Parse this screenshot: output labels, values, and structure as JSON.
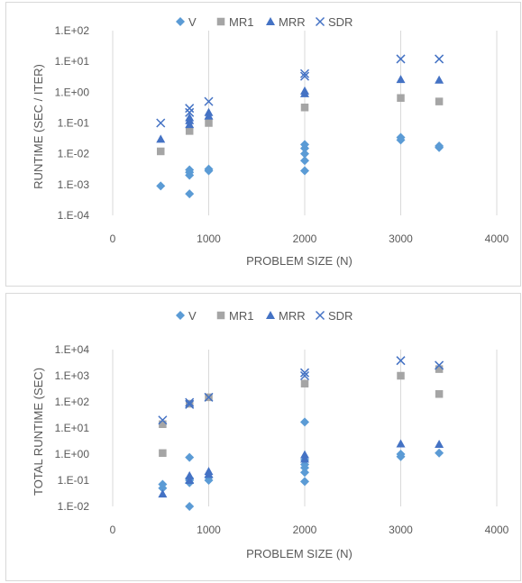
{
  "chart_data": [
    {
      "type": "scatter",
      "title": "",
      "xlabel": "PROBLEM SIZE (N)",
      "ylabel": "RUNTIME (SEC / ITER)",
      "xlim": [
        0,
        4000
      ],
      "xticks": [
        "0",
        "1000",
        "2000",
        "3000",
        "4000"
      ],
      "yscale": "log",
      "ylim": [
        0.0001,
        100
      ],
      "yticks": [
        "1.E-04",
        "1.E-03",
        "1.E-02",
        "1.E-01",
        "1.E+00",
        "1.E+01",
        "1.E+02"
      ],
      "grid": "vertical",
      "legend": "top",
      "series": [
        {
          "name": "V",
          "marker": "diamond",
          "color": "#5B9BD5",
          "points": [
            [
              500,
              0.0009
            ],
            [
              800,
              0.0005
            ],
            [
              800,
              0.002
            ],
            [
              800,
              0.0025
            ],
            [
              800,
              0.003
            ],
            [
              1000,
              0.0028
            ],
            [
              1000,
              0.0032
            ],
            [
              2000,
              0.0028
            ],
            [
              2000,
              0.006
            ],
            [
              2000,
              0.01
            ],
            [
              2000,
              0.015
            ],
            [
              2000,
              0.02
            ],
            [
              3000,
              0.028
            ],
            [
              3000,
              0.034
            ],
            [
              3400,
              0.016
            ],
            [
              3400,
              0.018
            ]
          ]
        },
        {
          "name": "MR1",
          "marker": "square",
          "color": "#A5A5A5",
          "points": [
            [
              500,
              0.012
            ],
            [
              800,
              0.055
            ],
            [
              1000,
              0.1
            ],
            [
              2000,
              0.32
            ],
            [
              3000,
              0.65
            ],
            [
              3400,
              0.5
            ]
          ]
        },
        {
          "name": "MRR",
          "marker": "triangle",
          "color": "#4472C4",
          "points": [
            [
              500,
              0.03
            ],
            [
              800,
              0.09
            ],
            [
              800,
              0.12
            ],
            [
              800,
              0.15
            ],
            [
              1000,
              0.17
            ],
            [
              1000,
              0.22
            ],
            [
              2000,
              0.9
            ],
            [
              2000,
              1.1
            ],
            [
              3000,
              2.6
            ],
            [
              3400,
              2.5
            ]
          ]
        },
        {
          "name": "SDR",
          "marker": "x",
          "color": "#4472C4",
          "points": [
            [
              500,
              0.1
            ],
            [
              800,
              0.22
            ],
            [
              800,
              0.3
            ],
            [
              1000,
              0.5
            ],
            [
              2000,
              3.3
            ],
            [
              2000,
              4.0
            ],
            [
              3000,
              12
            ],
            [
              3400,
              12
            ]
          ]
        }
      ]
    },
    {
      "type": "scatter",
      "title": "",
      "xlabel": "PROBLEM SIZE (N)",
      "ylabel": "TOTAL RUNTIME (SEC)",
      "xlim": [
        0,
        4000
      ],
      "xticks": [
        "0",
        "1000",
        "2000",
        "3000",
        "4000"
      ],
      "yscale": "log",
      "ylim": [
        0.01,
        10000
      ],
      "yticks": [
        "1.E-02",
        "1.E-01",
        "1.E+00",
        "1.E+01",
        "1.E+02",
        "1.E+03",
        "1.E+04"
      ],
      "grid": "vertical",
      "legend": "top",
      "series": [
        {
          "name": "V",
          "marker": "diamond",
          "color": "#5B9BD5",
          "points": [
            [
              520,
              0.05
            ],
            [
              520,
              0.07
            ],
            [
              800,
              0.01
            ],
            [
              800,
              0.08
            ],
            [
              800,
              0.1
            ],
            [
              800,
              0.12
            ],
            [
              800,
              0.75
            ],
            [
              1000,
              0.1
            ],
            [
              1000,
              0.13
            ],
            [
              2000,
              0.09
            ],
            [
              2000,
              0.2
            ],
            [
              2000,
              0.3
            ],
            [
              2000,
              0.4
            ],
            [
              2000,
              0.6
            ],
            [
              2000,
              17
            ],
            [
              3000,
              0.8
            ],
            [
              3000,
              1.0
            ],
            [
              3400,
              1.1
            ]
          ]
        },
        {
          "name": "MR1",
          "marker": "square",
          "color": "#A5A5A5",
          "points": [
            [
              520,
              1.1
            ],
            [
              520,
              14
            ],
            [
              800,
              85
            ],
            [
              1000,
              150
            ],
            [
              2000,
              500
            ],
            [
              3000,
              1000
            ],
            [
              3400,
              200
            ],
            [
              3400,
              1800
            ]
          ]
        },
        {
          "name": "MRR",
          "marker": "triangle",
          "color": "#4472C4",
          "points": [
            [
              520,
              0.03
            ],
            [
              800,
              0.1
            ],
            [
              800,
              0.15
            ],
            [
              1000,
              0.17
            ],
            [
              1000,
              0.22
            ],
            [
              2000,
              0.65
            ],
            [
              2000,
              0.95
            ],
            [
              3000,
              2.5
            ],
            [
              3400,
              2.4
            ]
          ]
        },
        {
          "name": "SDR",
          "marker": "x",
          "color": "#4472C4",
          "points": [
            [
              520,
              20
            ],
            [
              800,
              80
            ],
            [
              800,
              95
            ],
            [
              1000,
              150
            ],
            [
              2000,
              1000
            ],
            [
              2000,
              1300
            ],
            [
              3000,
              3800
            ],
            [
              3400,
              2500
            ]
          ]
        }
      ]
    }
  ]
}
